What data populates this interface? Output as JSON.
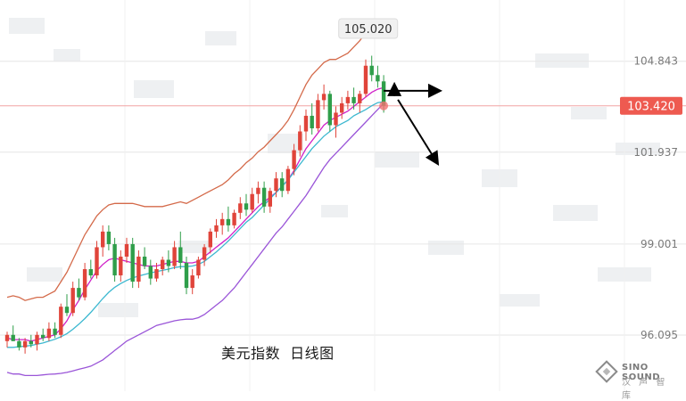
{
  "chart_data": {
    "type": "candlestick",
    "caption": "美元指数  日线图",
    "y_ticks": [
      "104.843",
      "101.937",
      "99.001",
      "96.095"
    ],
    "current_price": "103.420",
    "peak_label": "105.020",
    "ylim": [
      94.3,
      106.8
    ],
    "candles": [
      [
        95.9,
        96.2,
        95.7,
        96.1
      ],
      [
        96.1,
        96.4,
        95.9,
        95.9
      ],
      [
        95.9,
        96.0,
        95.6,
        95.7
      ],
      [
        95.7,
        96.0,
        95.5,
        95.9
      ],
      [
        95.9,
        96.1,
        95.7,
        95.8
      ],
      [
        95.8,
        96.2,
        95.6,
        96.1
      ],
      [
        96.1,
        96.3,
        95.9,
        96.0
      ],
      [
        96.0,
        96.5,
        95.9,
        96.3
      ],
      [
        96.3,
        96.5,
        96.0,
        96.1
      ],
      [
        96.1,
        97.1,
        96.0,
        97.0
      ],
      [
        97.0,
        97.4,
        96.7,
        96.8
      ],
      [
        96.8,
        97.8,
        96.7,
        97.6
      ],
      [
        97.6,
        97.9,
        97.2,
        97.3
      ],
      [
        97.3,
        98.4,
        97.2,
        98.2
      ],
      [
        98.2,
        98.5,
        97.9,
        98.0
      ],
      [
        98.0,
        99.1,
        97.9,
        98.9
      ],
      [
        98.9,
        99.6,
        98.6,
        99.4
      ],
      [
        99.4,
        99.6,
        98.8,
        99.0
      ],
      [
        99.0,
        99.2,
        97.8,
        98.0
      ],
      [
        98.0,
        98.8,
        97.8,
        98.6
      ],
      [
        98.6,
        99.2,
        98.4,
        99.0
      ],
      [
        99.0,
        99.2,
        97.6,
        97.8
      ],
      [
        97.8,
        98.8,
        97.6,
        98.6
      ],
      [
        98.6,
        98.9,
        98.2,
        98.3
      ],
      [
        98.3,
        98.5,
        97.7,
        97.9
      ],
      [
        97.9,
        98.4,
        97.8,
        98.2
      ],
      [
        98.2,
        98.6,
        98.0,
        98.5
      ],
      [
        98.5,
        98.8,
        98.1,
        98.3
      ],
      [
        98.3,
        99.1,
        98.2,
        98.9
      ],
      [
        98.9,
        99.4,
        98.2,
        98.4
      ],
      [
        98.4,
        98.6,
        97.4,
        97.6
      ],
      [
        97.6,
        98.2,
        97.4,
        98.0
      ],
      [
        98.0,
        98.6,
        97.9,
        98.5
      ],
      [
        98.5,
        99.0,
        98.3,
        98.9
      ],
      [
        98.9,
        99.5,
        98.7,
        99.4
      ],
      [
        99.4,
        99.8,
        99.2,
        99.6
      ],
      [
        99.6,
        100.0,
        99.3,
        99.8
      ],
      [
        99.8,
        100.2,
        99.4,
        99.6
      ],
      [
        99.6,
        100.1,
        99.5,
        100.0
      ],
      [
        100.0,
        100.5,
        99.8,
        100.3
      ],
      [
        100.3,
        100.6,
        99.9,
        100.1
      ],
      [
        100.1,
        100.8,
        100.0,
        100.6
      ],
      [
        100.6,
        101.0,
        100.3,
        100.8
      ],
      [
        100.8,
        101.0,
        100.0,
        100.2
      ],
      [
        100.2,
        100.8,
        100.0,
        100.7
      ],
      [
        100.7,
        101.3,
        100.5,
        101.1
      ],
      [
        101.1,
        101.3,
        100.5,
        100.7
      ],
      [
        100.7,
        101.5,
        100.6,
        101.4
      ],
      [
        101.4,
        102.2,
        101.2,
        102.0
      ],
      [
        102.0,
        102.8,
        101.8,
        102.6
      ],
      [
        102.6,
        103.3,
        102.3,
        103.1
      ],
      [
        103.1,
        103.5,
        102.5,
        102.7
      ],
      [
        102.7,
        103.8,
        102.6,
        103.6
      ],
      [
        103.6,
        104.1,
        103.3,
        103.8
      ],
      [
        103.8,
        103.9,
        102.6,
        102.8
      ],
      [
        102.8,
        103.4,
        102.4,
        103.2
      ],
      [
        103.2,
        103.7,
        103.0,
        103.5
      ],
      [
        103.5,
        103.9,
        103.3,
        103.7
      ],
      [
        103.7,
        104.0,
        103.3,
        103.5
      ],
      [
        103.5,
        103.9,
        103.2,
        103.8
      ],
      [
        103.8,
        104.9,
        103.7,
        104.7
      ],
      [
        104.7,
        105.02,
        104.2,
        104.4
      ],
      [
        104.4,
        104.7,
        104.0,
        104.2
      ],
      [
        104.2,
        104.4,
        103.2,
        103.42
      ]
    ],
    "overlays": [
      {
        "color": "#d46a4a",
        "values": [
          97.3,
          97.35,
          97.3,
          97.2,
          97.25,
          97.3,
          97.3,
          97.4,
          97.5,
          97.8,
          98.1,
          98.5,
          98.9,
          99.3,
          99.6,
          99.9,
          100.1,
          100.25,
          100.3,
          100.3,
          100.3,
          100.3,
          100.25,
          100.2,
          100.2,
          100.2,
          100.2,
          100.25,
          100.3,
          100.35,
          100.3,
          100.4,
          100.5,
          100.6,
          100.7,
          100.8,
          100.9,
          101.05,
          101.25,
          101.4,
          101.6,
          101.75,
          101.95,
          102.1,
          102.3,
          102.5,
          102.7,
          102.95,
          103.3,
          103.7,
          104.1,
          104.4,
          104.6,
          104.8,
          104.9,
          104.9,
          105.0,
          105.1,
          105.3,
          105.5,
          105.75,
          105.95,
          105.95,
          105.8
        ]
      },
      {
        "color": "#d020c8",
        "values": [
          96.0,
          95.95,
          95.95,
          95.95,
          95.9,
          95.95,
          96.0,
          96.05,
          96.1,
          96.3,
          96.55,
          96.9,
          97.2,
          97.55,
          97.85,
          98.15,
          98.35,
          98.5,
          98.55,
          98.5,
          98.45,
          98.4,
          98.35,
          98.3,
          98.3,
          98.3,
          98.35,
          98.4,
          98.45,
          98.45,
          98.4,
          98.4,
          98.45,
          98.6,
          98.75,
          98.9,
          99.05,
          99.2,
          99.4,
          99.6,
          99.8,
          100.0,
          100.2,
          100.35,
          100.5,
          100.65,
          100.85,
          101.05,
          101.35,
          101.7,
          102.05,
          102.3,
          102.55,
          102.8,
          102.95,
          103.05,
          103.15,
          103.25,
          103.4,
          103.55,
          103.7,
          103.85,
          103.95,
          104.0
        ]
      },
      {
        "color": "#3cb8d0",
        "values": [
          95.7,
          95.7,
          95.72,
          95.74,
          95.76,
          95.8,
          95.84,
          95.9,
          95.96,
          96.04,
          96.14,
          96.28,
          96.44,
          96.62,
          96.82,
          97.04,
          97.26,
          97.46,
          97.62,
          97.74,
          97.84,
          97.92,
          97.98,
          98.03,
          98.08,
          98.12,
          98.16,
          98.2,
          98.25,
          98.28,
          98.28,
          98.3,
          98.35,
          98.45,
          98.6,
          98.75,
          98.92,
          99.1,
          99.3,
          99.5,
          99.7,
          99.85,
          100.05,
          100.25,
          100.45,
          100.65,
          100.85,
          101.05,
          101.3,
          101.55,
          101.8,
          102.05,
          102.25,
          102.45,
          102.6,
          102.75,
          102.85,
          102.95,
          103.1,
          103.2,
          103.3,
          103.42,
          103.52,
          103.55
        ]
      },
      {
        "color": "#9a55d8",
        "values": [
          94.9,
          94.85,
          94.85,
          94.8,
          94.8,
          94.8,
          94.82,
          94.84,
          94.85,
          94.87,
          94.9,
          94.95,
          95.0,
          95.05,
          95.1,
          95.2,
          95.3,
          95.45,
          95.6,
          95.75,
          95.9,
          96.0,
          96.1,
          96.2,
          96.3,
          96.4,
          96.45,
          96.5,
          96.55,
          96.58,
          96.6,
          96.6,
          96.65,
          96.75,
          96.9,
          97.05,
          97.2,
          97.4,
          97.6,
          97.85,
          98.1,
          98.35,
          98.6,
          98.85,
          99.1,
          99.35,
          99.55,
          99.8,
          100.05,
          100.3,
          100.55,
          100.85,
          101.15,
          101.45,
          101.7,
          101.9,
          102.1,
          102.3,
          102.5,
          102.7,
          102.9,
          103.1,
          103.3,
          103.5
        ]
      }
    ]
  },
  "brand": {
    "name": "SINO SOUND",
    "sub": "汉 声 智 库"
  }
}
